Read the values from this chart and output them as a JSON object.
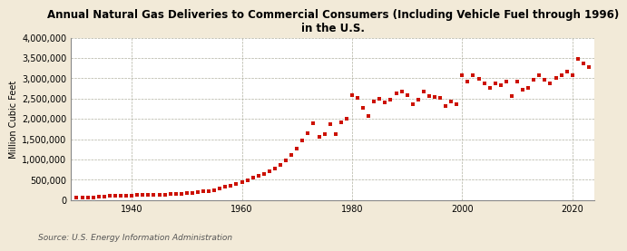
{
  "title": "Annual Natural Gas Deliveries to Commercial Consumers (Including Vehicle Fuel through 1996)\nin the U.S.",
  "ylabel": "Million Cubic Feet",
  "source": "Source: U.S. Energy Information Administration",
  "bg_color": "#f2ead8",
  "plot_bg_color": "#ffffff",
  "marker_color": "#cc1100",
  "years": [
    1930,
    1931,
    1932,
    1933,
    1934,
    1935,
    1936,
    1937,
    1938,
    1939,
    1940,
    1941,
    1942,
    1943,
    1944,
    1945,
    1946,
    1947,
    1948,
    1949,
    1950,
    1951,
    1952,
    1953,
    1954,
    1955,
    1956,
    1957,
    1958,
    1959,
    1960,
    1961,
    1962,
    1963,
    1964,
    1965,
    1966,
    1967,
    1968,
    1969,
    1970,
    1971,
    1972,
    1973,
    1974,
    1975,
    1976,
    1977,
    1978,
    1979,
    1980,
    1981,
    1982,
    1983,
    1984,
    1985,
    1986,
    1987,
    1988,
    1989,
    1990,
    1991,
    1992,
    1993,
    1994,
    1995,
    1996,
    1997,
    1998,
    1999,
    2000,
    2001,
    2002,
    2003,
    2004,
    2005,
    2006,
    2007,
    2008,
    2009,
    2010,
    2011,
    2012,
    2013,
    2014,
    2015,
    2016,
    2017,
    2018,
    2019,
    2020,
    2021,
    2022,
    2023
  ],
  "values": [
    68000,
    70000,
    65000,
    70000,
    76000,
    84000,
    95000,
    104000,
    100000,
    108000,
    112000,
    120000,
    122000,
    124000,
    128000,
    130000,
    134000,
    140000,
    148000,
    148000,
    162000,
    180000,
    196000,
    210000,
    220000,
    248000,
    285000,
    325000,
    355000,
    398000,
    450000,
    490000,
    540000,
    592000,
    645000,
    705000,
    775000,
    855000,
    970000,
    1110000,
    1260000,
    1460000,
    1650000,
    1890000,
    1560000,
    1620000,
    1860000,
    1620000,
    1910000,
    2010000,
    2580000,
    2520000,
    2270000,
    2080000,
    2420000,
    2500000,
    2400000,
    2470000,
    2620000,
    2680000,
    2580000,
    2370000,
    2480000,
    2680000,
    2570000,
    2530000,
    2520000,
    2320000,
    2420000,
    2370000,
    3080000,
    2920000,
    3080000,
    2980000,
    2870000,
    2770000,
    2870000,
    2820000,
    2920000,
    2570000,
    2920000,
    2720000,
    2770000,
    2970000,
    3080000,
    2970000,
    2870000,
    3020000,
    3080000,
    3170000,
    3070000,
    3470000,
    3370000,
    3270000
  ]
}
